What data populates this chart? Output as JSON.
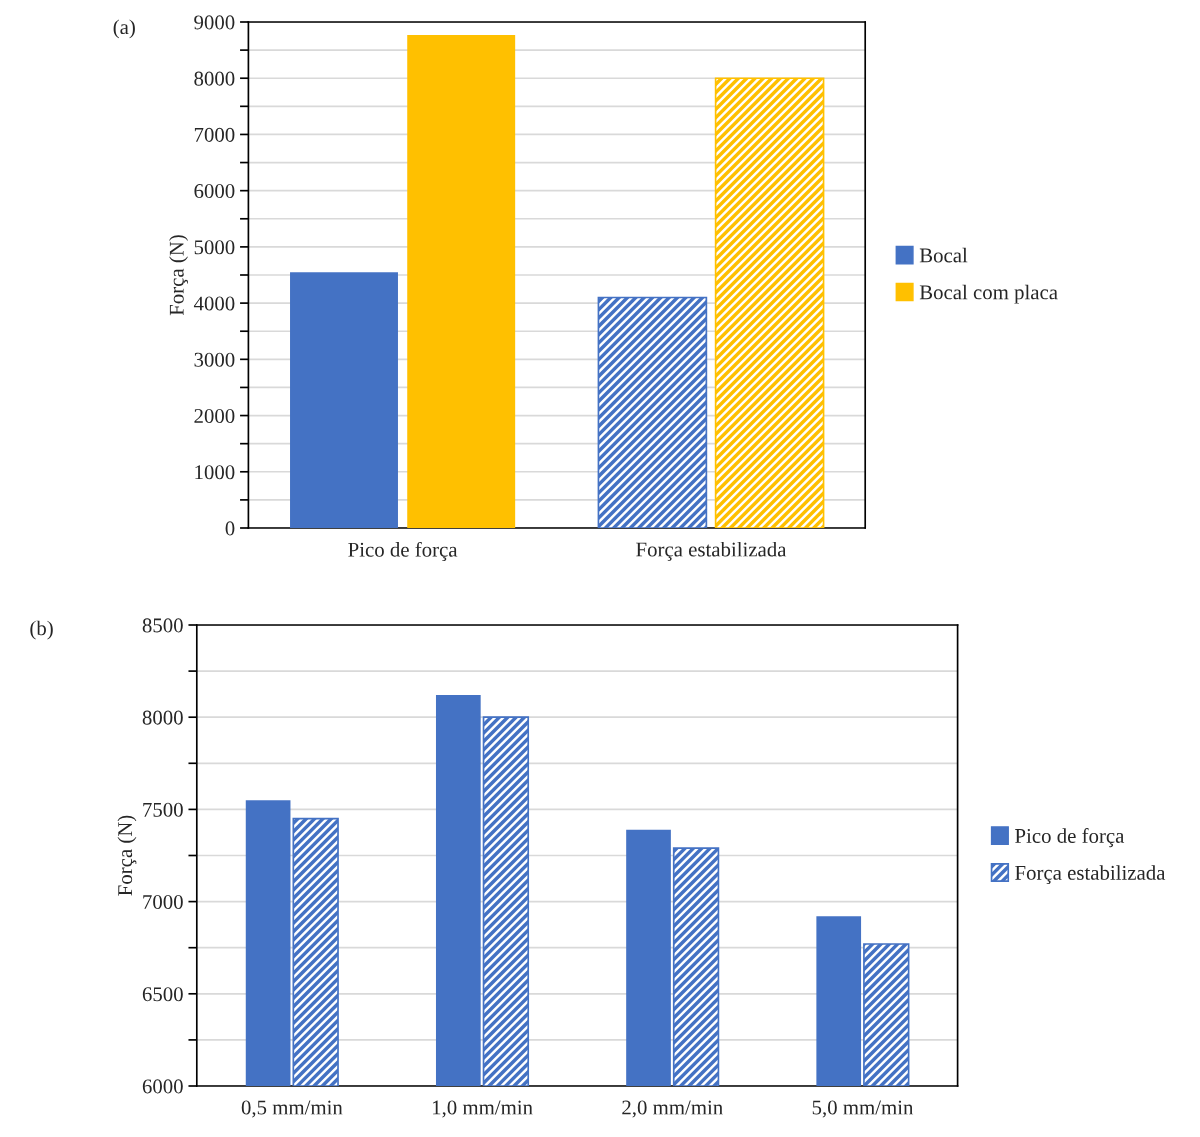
{
  "chart_data": [
    {
      "type": "bar",
      "title": "(a)",
      "ylabel": "Força (N)",
      "categories": [
        "Pico de força",
        "Força estabilizada"
      ],
      "series": [
        {
          "name": "Bocal",
          "color": "#4472c4",
          "values": [
            4550,
            4100
          ]
        },
        {
          "name": "Bocal com placa",
          "color": "#ffc000",
          "values": [
            8770,
            8000
          ]
        }
      ],
      "ylim": [
        0,
        9000
      ],
      "yticks": [
        0,
        {
          "value": 500,
          "label": null
        },
        1000,
        {
          "value": 1500,
          "label": null
        },
        2000,
        {
          "value": 2500,
          "label": null
        },
        3000,
        {
          "value": 3500,
          "label": null
        },
        4000,
        {
          "value": 4500,
          "label": null
        },
        5000,
        {
          "value": 5500,
          "label": null
        },
        6000,
        {
          "value": 6500,
          "label": null
        },
        7000,
        {
          "value": 7500,
          "label": null
        },
        8000,
        {
          "value": 8500,
          "label": null
        },
        9000
      ],
      "grid": "y",
      "legend": "right"
    },
    {
      "type": "bar",
      "title": "(b)",
      "ylabel": "Força (N)",
      "categories": [
        "0,5 mm/min",
        "1,0 mm/min",
        "2,0 mm/min",
        "5,0 mm/min"
      ],
      "series": [
        {
          "name": "Pico de força",
          "color": "#4472c4",
          "values": [
            7550,
            8120,
            7390,
            6920
          ]
        },
        {
          "name": "Força estabilizada",
          "color": "#4472c4",
          "values": [
            7450,
            8000,
            7290,
            6770
          ]
        }
      ],
      "ylim": [
        6000,
        8500
      ],
      "yticks": [
        6000,
        {
          "value": 6250,
          "label": null
        },
        6500,
        {
          "value": 6750,
          "label": null
        },
        7000,
        {
          "value": 7250,
          "label": null
        },
        7500,
        {
          "value": 7750,
          "label": null
        },
        8000,
        {
          "value": 8250,
          "label": null
        },
        8500
      ],
      "grid": "y",
      "legend": "right"
    }
  ]
}
